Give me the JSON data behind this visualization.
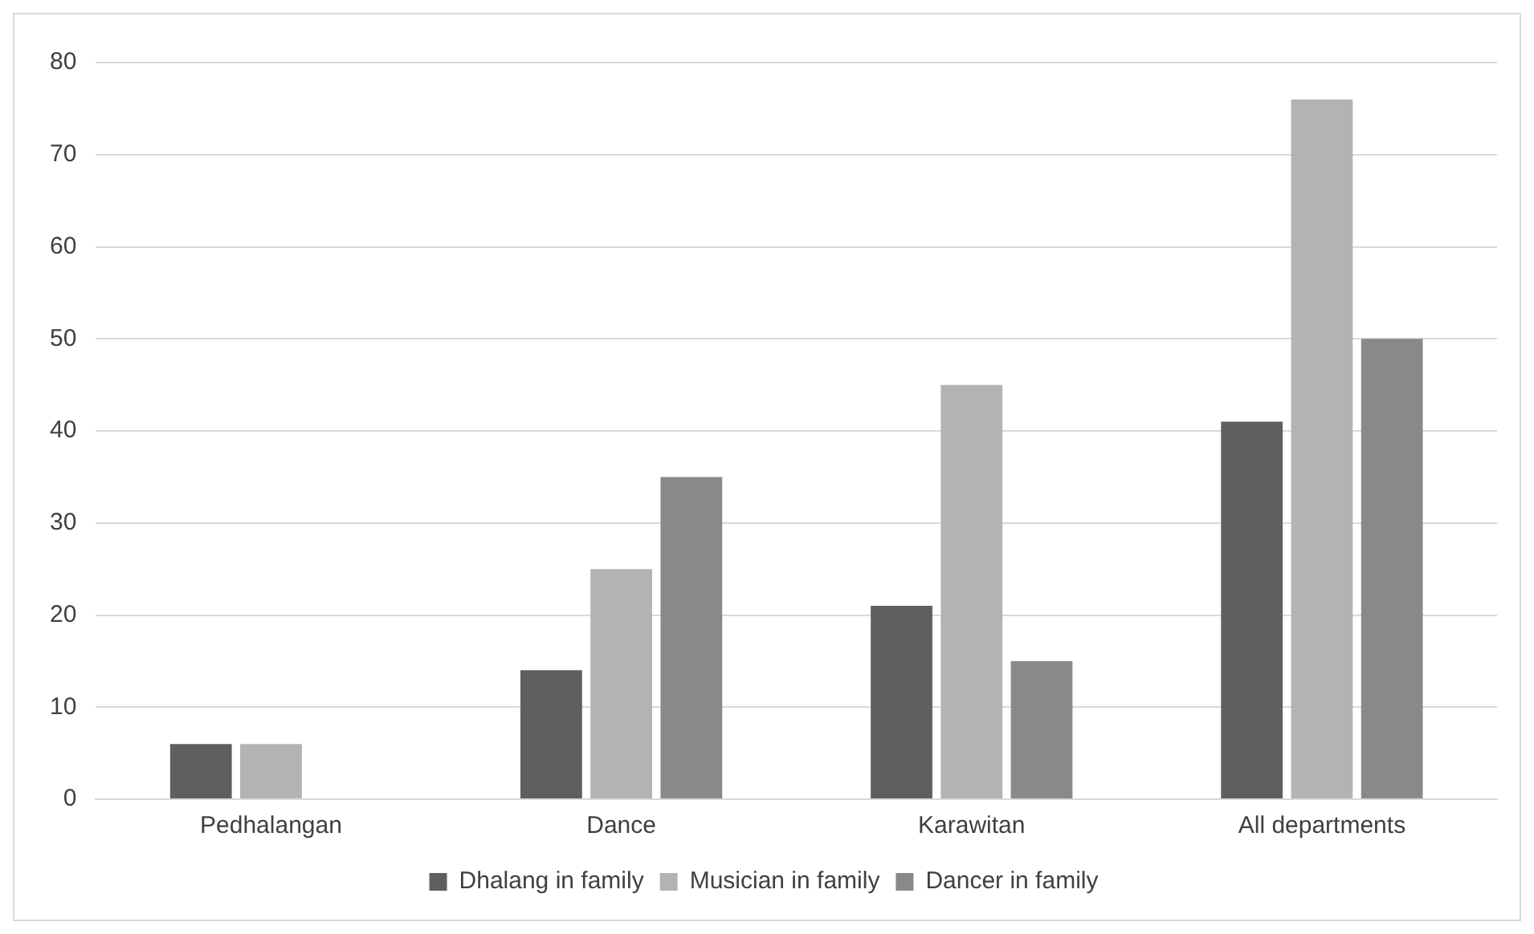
{
  "chart_data": {
    "type": "bar",
    "categories": [
      "Pedhalangan",
      "Dance",
      "Karawitan",
      "All departments"
    ],
    "series": [
      {
        "name": "Dhalang in family",
        "color": "#5f5f5f",
        "values": [
          6,
          14,
          21,
          41
        ]
      },
      {
        "name": "Musician in family",
        "color": "#b3b3b3",
        "values": [
          6,
          25,
          45,
          76
        ]
      },
      {
        "name": "Dancer in family",
        "color": "#898989",
        "values": [
          0,
          35,
          15,
          50
        ]
      }
    ],
    "ylim": [
      0,
      80
    ],
    "yticks": [
      0,
      10,
      20,
      30,
      40,
      50,
      60,
      70,
      80
    ],
    "grid": "y",
    "legend": "bottom"
  }
}
